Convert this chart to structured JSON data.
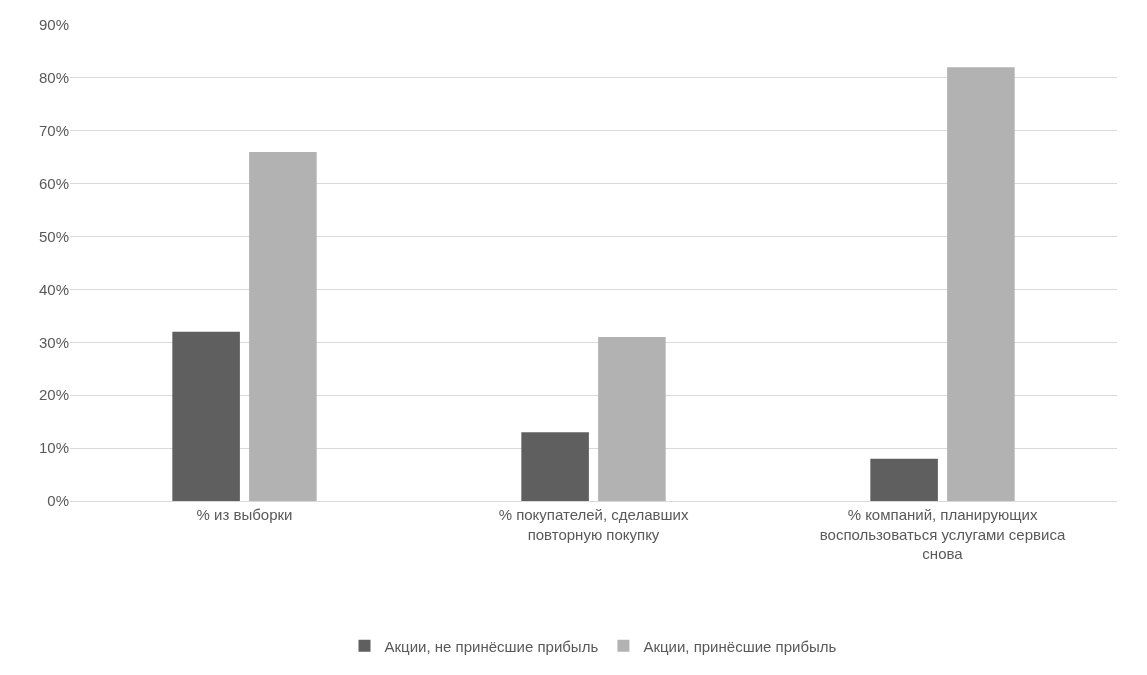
{
  "chart_data": {
    "type": "bar",
    "categories": [
      "% из выборки",
      "% покупателей, сделавших повторную покупку",
      "% компаний, планирующих воспользоваться услугами сервиса снова"
    ],
    "series": [
      {
        "name": "Акции, не принёсшие прибыль",
        "color": "#5f5f5f",
        "values": [
          32,
          13,
          8
        ]
      },
      {
        "name": "Акции, принёсшие прибыль",
        "color": "#b2b2b2",
        "values": [
          66,
          31,
          82
        ]
      }
    ],
    "ylim": [
      0,
      90
    ],
    "yticks": [
      {
        "value": 0,
        "label": "0%"
      },
      {
        "value": 10,
        "label": "10%"
      },
      {
        "value": 20,
        "label": "20%"
      },
      {
        "value": 30,
        "label": "30%"
      },
      {
        "value": 40,
        "label": "40%"
      },
      {
        "value": 50,
        "label": "50%"
      },
      {
        "value": 60,
        "label": "60%"
      },
      {
        "value": 70,
        "label": "70%"
      },
      {
        "value": 80,
        "label": "80%"
      },
      {
        "value": 90,
        "label": "90%"
      }
    ],
    "grid": "y",
    "legend": "bottom"
  }
}
